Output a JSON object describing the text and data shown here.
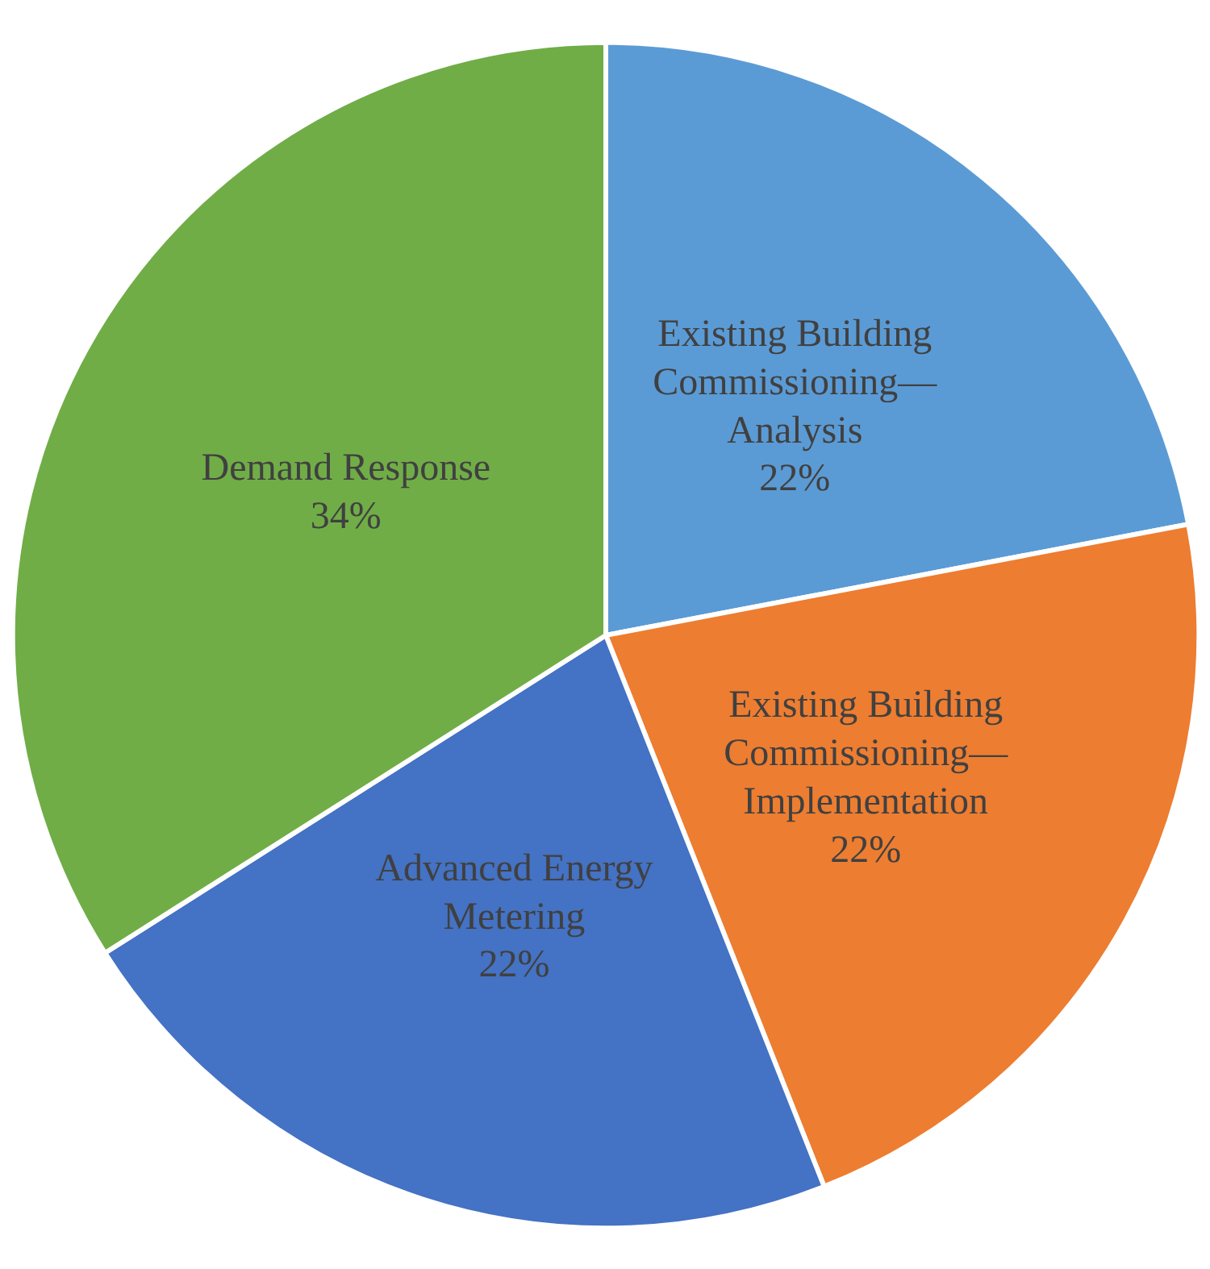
{
  "chart_data": {
    "type": "pie",
    "categories": [
      "Existing Building\nCommissioning—\nAnalysis",
      "Existing Building\nCommissioning—\nImplementation",
      "Advanced Energy\nMetering",
      "Demand Response"
    ],
    "values": [
      22,
      22,
      22,
      34
    ],
    "colors": [
      "#5b9bd5",
      "#ed7d31",
      "#4472c4",
      "#70ad47"
    ],
    "value_labels": [
      "22%",
      "22%",
      "22%",
      "34%"
    ]
  }
}
